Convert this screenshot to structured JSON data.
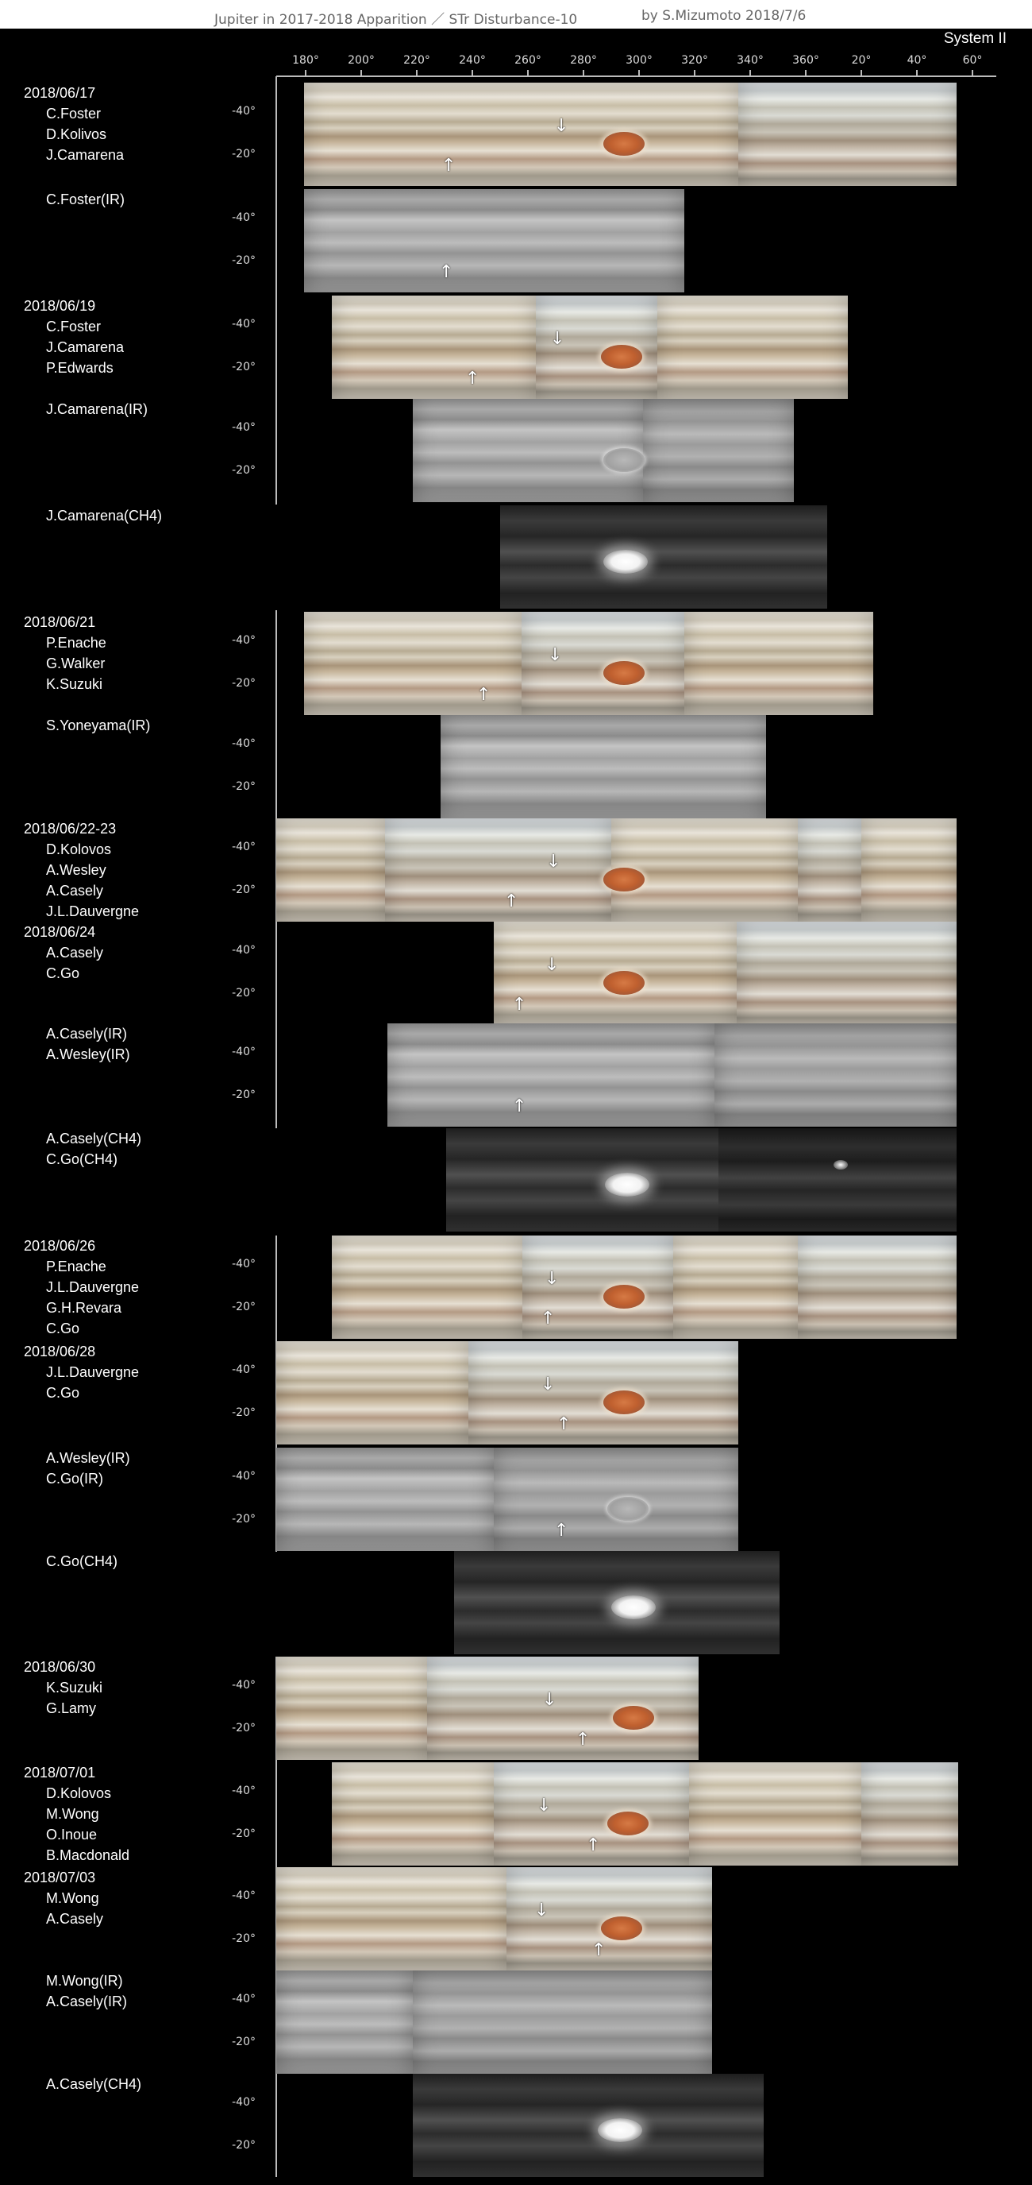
{
  "header": {
    "title": "Jupiter in 2017-2018 Apparition ／ STr Disturbance-10",
    "author": "by S.Mizumoto  2018/7/6",
    "system": "System II"
  },
  "axis": {
    "longitude_ticks": [
      "180°",
      "200°",
      "220°",
      "240°",
      "260°",
      "280°",
      "300°",
      "320°",
      "340°",
      "360°",
      "20°",
      "40°",
      "60°"
    ],
    "latitude_ticks": [
      "-40°",
      "-20°"
    ]
  },
  "observations": [
    {
      "date": "2018/06/17",
      "observers": [
        "C.Foster",
        "D.Kolivos",
        "J.Camarena"
      ]
    },
    {
      "date": "",
      "observers": [
        "C.Foster(IR)"
      ]
    },
    {
      "date": "2018/06/19",
      "observers": [
        "C.Foster",
        "J.Camarena",
        "P.Edwards"
      ]
    },
    {
      "date": "",
      "observers": [
        "J.Camarena(IR)"
      ]
    },
    {
      "date": "",
      "observers": [
        "J.Camarena(CH4)"
      ]
    },
    {
      "date": "2018/06/21",
      "observers": [
        "P.Enache",
        "G.Walker",
        "K.Suzuki"
      ]
    },
    {
      "date": "",
      "observers": [
        "S.Yoneyama(IR)"
      ]
    },
    {
      "date": "2018/06/22-23",
      "observers": [
        "D.Kolovos",
        "A.Wesley",
        "A.Casely",
        "J.L.Dauvergne"
      ]
    },
    {
      "date": "2018/06/24",
      "observers": [
        "A.Casely",
        "C.Go"
      ]
    },
    {
      "date": "",
      "observers": [
        "A.Casely(IR)",
        "A.Wesley(IR)"
      ]
    },
    {
      "date": "",
      "observers": [
        "A.Casely(CH4)",
        "C.Go(CH4)"
      ]
    },
    {
      "date": "2018/06/26",
      "observers": [
        "P.Enache",
        "J.L.Dauvergne",
        "G.H.Revara",
        "C.Go"
      ]
    },
    {
      "date": "2018/06/28",
      "observers": [
        "J.L.Dauvergne",
        "C.Go"
      ]
    },
    {
      "date": "",
      "observers": [
        "A.Wesley(IR)",
        "C.Go(IR)"
      ]
    },
    {
      "date": "",
      "observers": [
        "C.Go(CH4)"
      ]
    },
    {
      "date": "2018/06/30",
      "observers": [
        "K.Suzuki",
        "G.Lamy"
      ]
    },
    {
      "date": "2018/07/01",
      "observers": [
        "D.Kolovos",
        "M.Wong",
        "O.Inoue",
        "B.Macdonald"
      ]
    },
    {
      "date": "2018/07/03",
      "observers": [
        "M.Wong",
        "A.Casely"
      ]
    },
    {
      "date": "",
      "observers": [
        "M.Wong(IR)",
        "A.Casely(IR)"
      ]
    },
    {
      "date": "",
      "observers": [
        "A.Casely(CH4)"
      ]
    }
  ],
  "colors": {
    "background": "#000000",
    "title_bar": "#ffffff",
    "title_text": "#666666",
    "grs": "#c0602f"
  }
}
